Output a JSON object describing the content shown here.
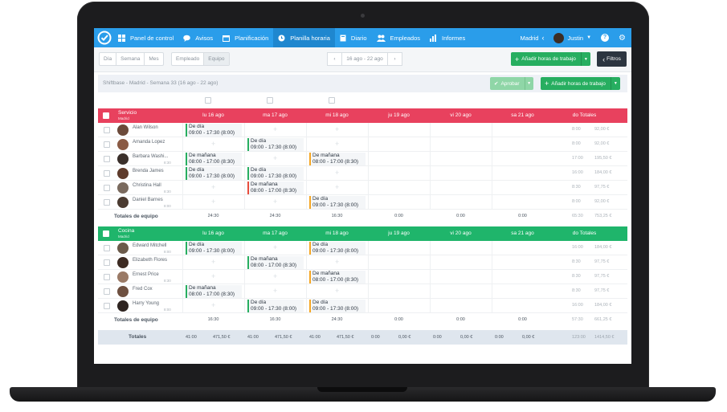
{
  "nav": {
    "items": [
      {
        "label": "Panel de control",
        "icon": "grid-icon"
      },
      {
        "label": "Avisos",
        "icon": "chat-icon"
      },
      {
        "label": "Planificación",
        "icon": "calendar-icon"
      },
      {
        "label": "Planilla horaria",
        "icon": "clock-icon"
      },
      {
        "label": "Diario",
        "icon": "book-icon"
      },
      {
        "label": "Empleados",
        "icon": "people-icon"
      },
      {
        "label": "Informes",
        "icon": "bar-chart-icon"
      }
    ],
    "location": "Madrid",
    "user": "Justin",
    "help": "?",
    "colors": {
      "bar": "#2a9dea",
      "active": "#1f87cf"
    }
  },
  "toolbar": {
    "view_tabs": [
      "Día",
      "Semana",
      "Mes"
    ],
    "group_tabs": [
      "Empleado",
      "Equipo"
    ],
    "date_range": "16 ago - 22 ago",
    "add_hours_label": "Añadir horas de trabajo",
    "filters_label": "Filtros"
  },
  "subheader": {
    "title": "Shiftbase - Madrid - Semana 33 (16 ago - 22 ago)",
    "approve_label": "Aprobar",
    "add_hours_label": "Añadir horas de trabajo"
  },
  "days": [
    "lu 16 ago",
    "ma 17 ago",
    "mi 18 ago",
    "ju 19 ago",
    "vi 20 ago",
    "sa 21 ago"
  ],
  "totals_header": "do Totales",
  "sections": [
    {
      "name": "Servicio",
      "location": "Madrid",
      "color": "#e8415e",
      "employees": [
        {
          "name": "Alan Wilson",
          "sub": "",
          "hours": "8:00",
          "amount": "92,00 €",
          "shifts": [
            {
              "day": 0,
              "title": "De día",
              "time": "09:00 - 17:30 (8:00)",
              "color": "green"
            }
          ]
        },
        {
          "name": "Amanda Lopez",
          "sub": "",
          "hours": "8:00",
          "amount": "92,00 €",
          "shifts": [
            {
              "day": 1,
              "title": "De día",
              "time": "09:00 - 17:30 (8:00)",
              "color": "green"
            }
          ]
        },
        {
          "name": "Barbara Washi...",
          "sub": "8:30",
          "hours": "17:00",
          "amount": "195,50 €",
          "shifts": [
            {
              "day": 0,
              "title": "De mañana",
              "time": "08:00 - 17:00 (8:30)",
              "color": "green"
            },
            {
              "day": 2,
              "title": "De mañana",
              "time": "08:00 - 17:00 (8:30)",
              "color": "orange"
            }
          ]
        },
        {
          "name": "Brenda James",
          "sub": "",
          "hours": "16:00",
          "amount": "184,00 €",
          "shifts": [
            {
              "day": 0,
              "title": "De día",
              "time": "09:00 - 17:30 (8:00)",
              "color": "green"
            },
            {
              "day": 1,
              "title": "De día",
              "time": "09:00 - 17:30 (8:00)",
              "color": "green"
            }
          ]
        },
        {
          "name": "Christina Hall",
          "sub": "8:30",
          "hours": "8:30",
          "amount": "97,75 €",
          "shifts": [
            {
              "day": 1,
              "title": "De mañana",
              "time": "08:00 - 17:00 (8:30)",
              "color": "red"
            }
          ]
        },
        {
          "name": "Daniel Barnes",
          "sub": "8:00",
          "hours": "8:00",
          "amount": "92,00 €",
          "shifts": [
            {
              "day": 2,
              "title": "De día",
              "time": "09:00 - 17:30 (8:00)",
              "color": "orange"
            }
          ]
        }
      ],
      "totals_label": "Totales de equipo",
      "totals": [
        "24:30",
        "24:30",
        "16:30",
        "0:00",
        "0:00",
        "0:00"
      ],
      "total_hours": "65:30",
      "total_amount": "753,25 €"
    },
    {
      "name": "Cocina",
      "location": "Madrid",
      "color": "#1fb56b",
      "employees": [
        {
          "name": "Edward Mitchell",
          "sub": "8:00",
          "hours": "16:00",
          "amount": "184,00 €",
          "shifts": [
            {
              "day": 0,
              "title": "De día",
              "time": "09:00 - 17:30 (8:00)",
              "color": "green"
            },
            {
              "day": 2,
              "title": "De día",
              "time": "09:00 - 17:30 (8:00)",
              "color": "orange"
            }
          ]
        },
        {
          "name": "Elizabeth Flores",
          "sub": "",
          "hours": "8:30",
          "amount": "97,75 €",
          "shifts": [
            {
              "day": 1,
              "title": "De mañana",
              "time": "08:00 - 17:00 (8:30)",
              "color": "green"
            }
          ]
        },
        {
          "name": "Ernest Price",
          "sub": "8:30",
          "hours": "8:30",
          "amount": "97,75 €",
          "shifts": [
            {
              "day": 2,
              "title": "De mañana",
              "time": "08:00 - 17:00 (8:30)",
              "color": "orange"
            }
          ]
        },
        {
          "name": "Fred Cox",
          "sub": "",
          "hours": "8:30",
          "amount": "97,75 €",
          "shifts": [
            {
              "day": 0,
              "title": "De mañana",
              "time": "08:00 - 17:00 (8:30)",
              "color": "green"
            }
          ]
        },
        {
          "name": "Harry Young",
          "sub": "8:00",
          "hours": "16:00",
          "amount": "184,00 €",
          "shifts": [
            {
              "day": 1,
              "title": "De día",
              "time": "09:00 - 17:30 (8:00)",
              "color": "green"
            },
            {
              "day": 2,
              "title": "De día",
              "time": "09:00 - 17:30 (8:00)",
              "color": "orange"
            }
          ]
        }
      ],
      "totals_label": "Totales de equipo",
      "totals": [
        "16:30",
        "16:30",
        "24:30",
        "0:00",
        "0:00",
        "0:00"
      ],
      "total_hours": "57:30",
      "total_amount": "661,25 €"
    }
  ],
  "grand_totals": {
    "label": "Totales",
    "values": [
      [
        "41:00",
        "471,50 €"
      ],
      [
        "41:00",
        "471,50 €"
      ],
      [
        "41:00",
        "471,50 €"
      ],
      [
        "0:00",
        "0,00 €"
      ],
      [
        "0:00",
        "0,00 €"
      ],
      [
        "0:00",
        "0,00 €"
      ]
    ],
    "total_hours": "123:00",
    "total_amount": "1414,50 €"
  }
}
